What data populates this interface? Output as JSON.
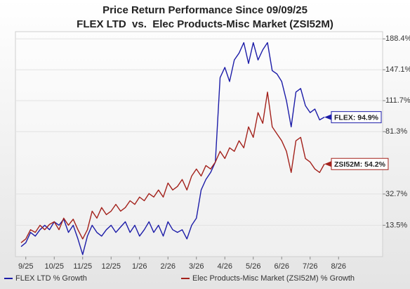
{
  "chart_data": {
    "type": "line",
    "title": "Price Return Performance Since 09/09/25",
    "subtitle": "FLEX LTD  vs.  Elec Products-Misc Market (ZSI52M)",
    "log_scale": true,
    "grid": true,
    "ylim": [
      -3,
      199
    ],
    "yticks": [
      {
        "value": 13.5,
        "label": "13.5%"
      },
      {
        "value": 32.7,
        "label": "32.7%"
      },
      {
        "value": 81.3,
        "label": "81.3%"
      },
      {
        "value": 111.7,
        "label": "111.7%"
      },
      {
        "value": 147.1,
        "label": "147.1%"
      },
      {
        "value": 188.4,
        "label": "188.4%"
      }
    ],
    "categories": [
      null,
      "9/25",
      null,
      null,
      null,
      null,
      null,
      "10/25",
      null,
      null,
      null,
      null,
      null,
      "11/25",
      null,
      null,
      null,
      null,
      null,
      "12/25",
      null,
      null,
      null,
      null,
      null,
      "1/26",
      null,
      null,
      null,
      null,
      null,
      "2/26",
      null,
      null,
      null,
      null,
      null,
      "3/26",
      null,
      null,
      null,
      null,
      null,
      "4/26",
      null,
      null,
      null,
      null,
      null,
      "5/26",
      null,
      null,
      null,
      null,
      null,
      "6/26",
      null,
      null,
      null,
      null,
      null,
      "7/26",
      null,
      null,
      null,
      null,
      null,
      "8/26",
      null
    ],
    "series": [
      {
        "name": "FLEX LTD % Growth",
        "color": "#1c1ca8",
        "values": [
          2,
          4,
          9.5,
          7.5,
          11,
          13.5,
          11,
          15.5,
          13.5,
          17,
          9.5,
          13.5,
          6,
          -2,
          7.5,
          13.5,
          9.5,
          7.5,
          11,
          13.5,
          9.5,
          12.5,
          15.5,
          9.5,
          13.5,
          7.5,
          11,
          15.5,
          9.5,
          13.5,
          7.5,
          15.5,
          11,
          9.5,
          11,
          6,
          13.5,
          17.6,
          35.4,
          42.7,
          47.8,
          55.7,
          137.5,
          150,
          133,
          159.5,
          168.5,
          183,
          155,
          183,
          159.5,
          173,
          183,
          146,
          142,
          133,
          111.7,
          85.7,
          121,
          125,
          106.5,
          99.4,
          103,
          92.3,
          94.9,
          null,
          null,
          null,
          null
        ],
        "value_labels": [
          null,
          null,
          null,
          null,
          null,
          null,
          null,
          null,
          null,
          null,
          null,
          null,
          null,
          null,
          null,
          null,
          null,
          null,
          null,
          null,
          null,
          null,
          null,
          null,
          null,
          null,
          null,
          null,
          null,
          null,
          null,
          null,
          null,
          null,
          null,
          null,
          null,
          null,
          null,
          null,
          null,
          null,
          null,
          null,
          null,
          null,
          null,
          null,
          null,
          null,
          null,
          null,
          null,
          null,
          null,
          null,
          null,
          null,
          null,
          null,
          null,
          null,
          null,
          null,
          "FLEX: 94.9%",
          null,
          null,
          null,
          null
        ]
      },
      {
        "name": "Elec Products-Misc Market (ZSI52M) % Growth",
        "color": "#a3211b",
        "values": [
          4,
          6,
          11,
          9.5,
          13.5,
          11,
          14,
          15.5,
          11,
          17.6,
          13.5,
          17,
          11,
          6,
          11,
          21.8,
          17.6,
          24,
          19.7,
          21.8,
          26,
          21.8,
          24,
          28.3,
          26,
          30.7,
          28.3,
          33,
          30.7,
          35.4,
          30.7,
          40.2,
          35.4,
          37.8,
          42.7,
          35.4,
          45.2,
          50.4,
          45.2,
          53,
          50.4,
          55.7,
          64.3,
          58.5,
          67.2,
          64.3,
          73.2,
          67.2,
          85.7,
          76.2,
          99.4,
          89,
          121,
          85.7,
          79.3,
          73.2,
          64.3,
          47.8,
          73.2,
          76.2,
          58.5,
          55.7,
          50.4,
          47.8,
          54.2,
          null,
          null,
          null,
          null
        ],
        "value_labels": [
          null,
          null,
          null,
          null,
          null,
          null,
          null,
          null,
          null,
          null,
          null,
          null,
          null,
          null,
          null,
          null,
          null,
          null,
          null,
          null,
          null,
          null,
          null,
          null,
          null,
          null,
          null,
          null,
          null,
          null,
          null,
          null,
          null,
          null,
          null,
          null,
          null,
          null,
          null,
          null,
          null,
          null,
          null,
          null,
          null,
          null,
          null,
          null,
          null,
          null,
          null,
          null,
          null,
          null,
          null,
          null,
          null,
          null,
          null,
          null,
          null,
          null,
          null,
          null,
          "ZSI52M: 54.2%",
          null,
          null,
          null,
          null
        ]
      }
    ]
  }
}
